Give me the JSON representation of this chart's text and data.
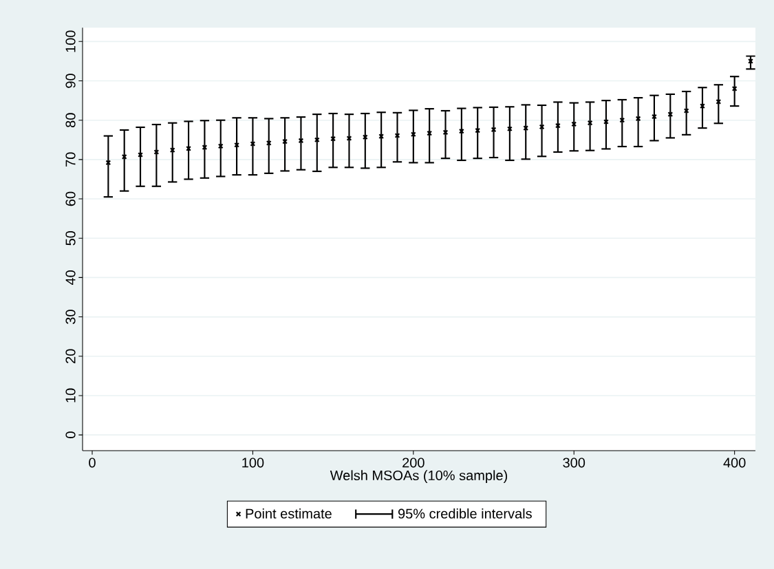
{
  "chart_data": {
    "type": "scatter",
    "xlabel": "Welsh MSOAs (10% sample)",
    "x": [
      10,
      20,
      30,
      40,
      50,
      60,
      70,
      80,
      90,
      100,
      110,
      120,
      130,
      140,
      150,
      160,
      170,
      180,
      190,
      200,
      210,
      220,
      230,
      240,
      250,
      260,
      270,
      280,
      290,
      300,
      310,
      320,
      330,
      340,
      350,
      360,
      370,
      380,
      390,
      400,
      410
    ],
    "series": [
      {
        "name": "Point estimate",
        "color": "#000000",
        "values": [
          69.2,
          70.7,
          71.2,
          71.9,
          72.4,
          72.8,
          73.1,
          73.4,
          73.7,
          74,
          74.2,
          74.6,
          74.8,
          75,
          75.3,
          75.4,
          75.7,
          75.9,
          76.1,
          76.4,
          76.7,
          76.9,
          77.2,
          77.4,
          77.6,
          77.8,
          78,
          78.3,
          78.6,
          79,
          79.3,
          79.6,
          80,
          80.4,
          80.9,
          81.5,
          82.4,
          83.6,
          84.7,
          88,
          95
        ],
        "errors": [
          [
            60.5,
            76
          ],
          [
            62,
            77.5
          ],
          [
            63.2,
            78.2
          ],
          [
            63.2,
            78.9
          ],
          [
            64.3,
            79.3
          ],
          [
            65,
            79.7
          ],
          [
            65.3,
            79.9
          ],
          [
            65.7,
            80
          ],
          [
            66.1,
            80.6
          ],
          [
            66.1,
            80.6
          ],
          [
            66.5,
            80.4
          ],
          [
            67.1,
            80.6
          ],
          [
            67.4,
            80.8
          ],
          [
            67,
            81.5
          ],
          [
            68,
            81.7
          ],
          [
            68,
            81.5
          ],
          [
            67.8,
            81.7
          ],
          [
            68,
            82
          ],
          [
            69.4,
            81.9
          ],
          [
            69.2,
            82.5
          ],
          [
            69.2,
            82.9
          ],
          [
            70.3,
            82.4
          ],
          [
            69.8,
            83
          ],
          [
            70.3,
            83.2
          ],
          [
            70.5,
            83.3
          ],
          [
            69.8,
            83.4
          ],
          [
            70.1,
            83.9
          ],
          [
            70.8,
            83.8
          ],
          [
            71.9,
            84.6
          ],
          [
            72.2,
            84.4
          ],
          [
            72.3,
            84.6
          ],
          [
            72.7,
            85
          ],
          [
            73.3,
            85.2
          ],
          [
            73.3,
            85.7
          ],
          [
            74.8,
            86.3
          ],
          [
            75.5,
            86.6
          ],
          [
            76.3,
            87.3
          ],
          [
            78,
            88.3
          ],
          [
            79.2,
            89
          ],
          [
            83.6,
            91.1
          ],
          [
            93,
            96.3
          ]
        ]
      }
    ],
    "annotations": [
      "95% credible intervals"
    ],
    "xlim": [
      -6,
      413
    ],
    "ylim": [
      -4,
      103.5
    ],
    "xticks": [
      0,
      100,
      200,
      300,
      400
    ],
    "yticks": [
      0,
      10,
      20,
      30,
      40,
      50,
      60,
      70,
      80,
      90,
      100
    ],
    "grid": "y",
    "legend": "bottom",
    "marker": "cross"
  }
}
